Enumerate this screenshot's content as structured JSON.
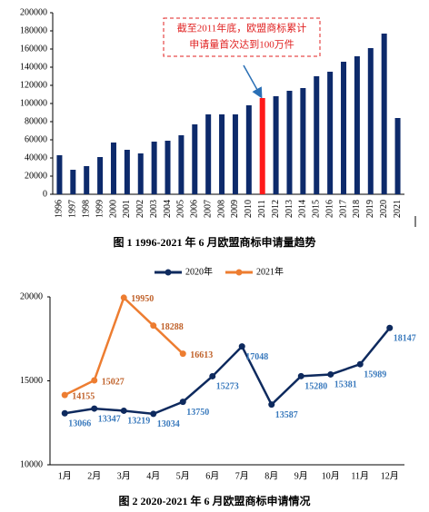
{
  "chart_data": [
    {
      "type": "bar",
      "categories": [
        "1996",
        "1997",
        "1998",
        "1999",
        "2000",
        "2001",
        "2002",
        "2003",
        "2004",
        "2005",
        "2006",
        "2007",
        "2008",
        "2009",
        "2010",
        "2011",
        "2012",
        "2013",
        "2014",
        "2015",
        "2016",
        "2017",
        "2018",
        "2019",
        "2020",
        "2021"
      ],
      "values": [
        43000,
        27000,
        31000,
        41000,
        57000,
        49000,
        45000,
        58000,
        59000,
        65000,
        77000,
        88000,
        88000,
        88000,
        98000,
        106000,
        108000,
        114000,
        117000,
        130000,
        135000,
        146000,
        152000,
        161000,
        177000,
        84000
      ],
      "colors": [
        "#0d2a6b",
        "#0d2a6b",
        "#0d2a6b",
        "#0d2a6b",
        "#0d2a6b",
        "#0d2a6b",
        "#0d2a6b",
        "#0d2a6b",
        "#0d2a6b",
        "#0d2a6b",
        "#0d2a6b",
        "#0d2a6b",
        "#0d2a6b",
        "#0d2a6b",
        "#0d2a6b",
        "#ff1a1a",
        "#0d2a6b",
        "#0d2a6b",
        "#0d2a6b",
        "#0d2a6b",
        "#0d2a6b",
        "#0d2a6b",
        "#0d2a6b",
        "#0d2a6b",
        "#0d2a6b",
        "#0d2a6b"
      ],
      "ylim": [
        0,
        200000
      ],
      "yticks": [
        0,
        20000,
        40000,
        60000,
        80000,
        100000,
        120000,
        140000,
        160000,
        180000,
        200000
      ],
      "annotation": [
        "截至2011年底，欧盟商标累计",
        "申请量首次达到100万件"
      ],
      "caption": "图 1 1996-2021 年 6 月欧盟商标申请量趋势"
    },
    {
      "type": "line",
      "categories": [
        "1月",
        "2月",
        "3月",
        "4月",
        "5月",
        "6月",
        "7月",
        "8月",
        "9月",
        "10月",
        "11月",
        "12月"
      ],
      "series": [
        {
          "name": "2020年",
          "color": "#0e2a5e",
          "label_color": "#3a7abd",
          "values": [
            13066,
            13347,
            13219,
            13034,
            13750,
            15273,
            17048,
            13587,
            15280,
            15381,
            15989,
            18147
          ]
        },
        {
          "name": "2021年",
          "color": "#ed7d31",
          "label_color": "#c0622b",
          "values": [
            14155,
            15027,
            19950,
            18288,
            16613,
            null,
            null,
            null,
            null,
            null,
            null,
            null
          ]
        }
      ],
      "ylim": [
        10000,
        20000
      ],
      "yticks": [
        10000,
        15000,
        20000
      ],
      "legend": "top",
      "caption": "图 2 2020-2021 年 6 月欧盟商标申请情况"
    }
  ]
}
